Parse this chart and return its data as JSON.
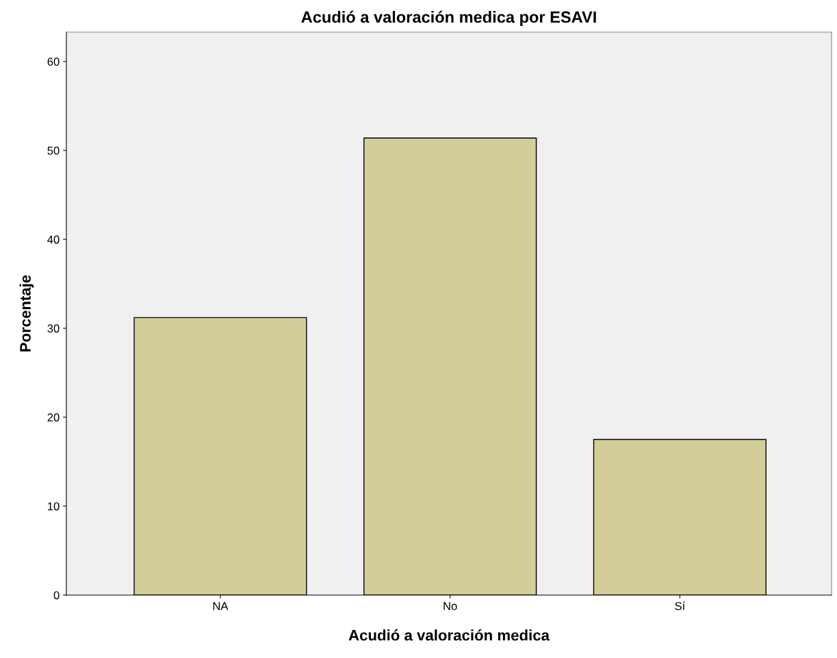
{
  "chart_data": {
    "type": "bar",
    "title": "Acudió a valoración medica por ESAVI",
    "xlabel": "Acudió a valoración medica",
    "ylabel": "Porcentaje",
    "categories": [
      "NA",
      "No",
      "Sí"
    ],
    "values": [
      31.2,
      51.4,
      17.5
    ],
    "color": "#d3ce97",
    "ylim": [
      0,
      63.3
    ],
    "yticks": [
      0,
      10,
      20,
      30,
      40,
      50,
      60
    ],
    "grid": false,
    "legend": false
  }
}
